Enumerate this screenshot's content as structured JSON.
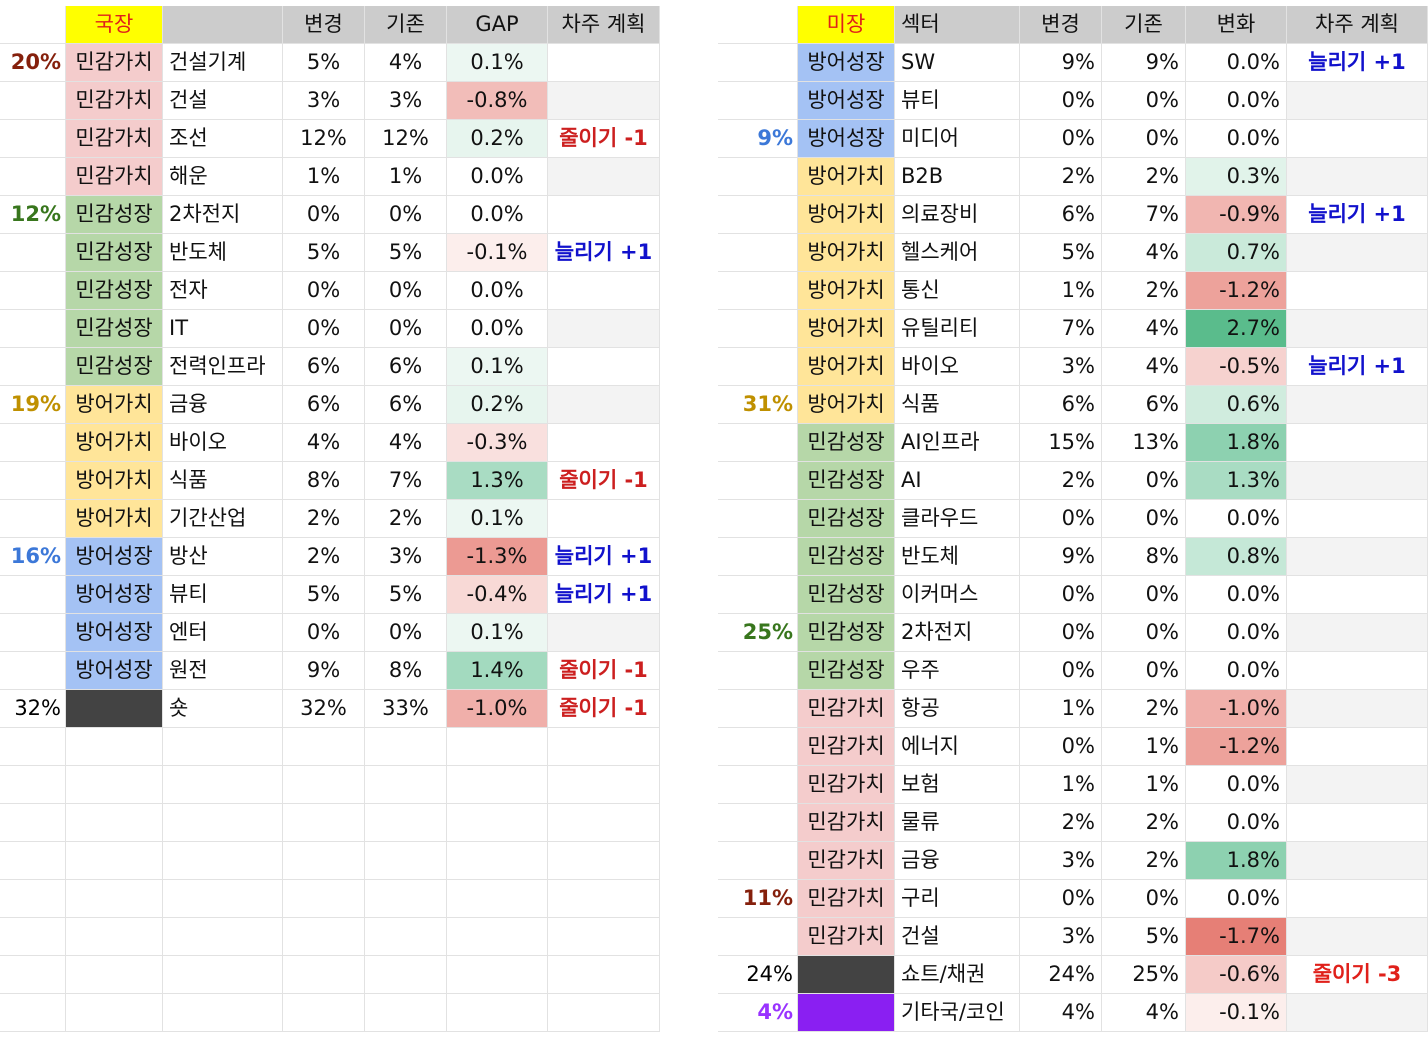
{
  "category_colors": {
    "민감가치": "#f4cccc",
    "민감성장": "#b6d7a8",
    "방어가치": "#ffe599",
    "방어성장": "#a4c2f4"
  },
  "tables": {
    "left": {
      "header": {
        "market": "국장",
        "columns": [
          "변경",
          "기존",
          "GAP",
          "차주 계획"
        ]
      },
      "rows": [
        {
          "pct": "20%",
          "pct_color": "#85200c",
          "category": "민감가치",
          "sector": "건설기계",
          "new": "5%",
          "old": "4%",
          "change": "0.1%"
        },
        {
          "category": "민감가치",
          "sector": "건설",
          "new": "3%",
          "old": "3%",
          "change": "-0.8%"
        },
        {
          "category": "민감가치",
          "sector": "조선",
          "new": "12%",
          "old": "12%",
          "change": "0.2%",
          "plan": "줄이기 -1",
          "plan_color": "#cc1f1f"
        },
        {
          "category": "민감가치",
          "sector": "해운",
          "new": "1%",
          "old": "1%",
          "change": "0.0%"
        },
        {
          "pct": "12%",
          "pct_color": "#38761d",
          "category": "민감성장",
          "sector": "2차전지",
          "new": "0%",
          "old": "0%",
          "change": "0.0%"
        },
        {
          "category": "민감성장",
          "sector": "반도체",
          "new": "5%",
          "old": "5%",
          "change": "-0.1%",
          "plan": "늘리기 +1",
          "plan_color": "#1111cc"
        },
        {
          "category": "민감성장",
          "sector": "전자",
          "new": "0%",
          "old": "0%",
          "change": "0.0%"
        },
        {
          "category": "민감성장",
          "sector": "IT",
          "new": "0%",
          "old": "0%",
          "change": "0.0%"
        },
        {
          "category": "민감성장",
          "sector": "전력인프라",
          "new": "6%",
          "old": "6%",
          "change": "0.1%"
        },
        {
          "pct": "19%",
          "pct_color": "#bf9000",
          "category": "방어가치",
          "sector": "금융",
          "new": "6%",
          "old": "6%",
          "change": "0.2%"
        },
        {
          "category": "방어가치",
          "sector": "바이오",
          "new": "4%",
          "old": "4%",
          "change": "-0.3%"
        },
        {
          "category": "방어가치",
          "sector": "식품",
          "new": "8%",
          "old": "7%",
          "change": "1.3%",
          "plan": "줄이기 -1",
          "plan_color": "#cc1f1f"
        },
        {
          "category": "방어가치",
          "sector": "기간산업",
          "new": "2%",
          "old": "2%",
          "change": "0.1%"
        },
        {
          "pct": "16%",
          "pct_color": "#3c78d8",
          "category": "방어성장",
          "sector": "방산",
          "new": "2%",
          "old": "3%",
          "change": "-1.3%",
          "plan": "늘리기 +1",
          "plan_color": "#1111cc"
        },
        {
          "category": "방어성장",
          "sector": "뷰티",
          "new": "5%",
          "old": "5%",
          "change": "-0.4%",
          "plan": "늘리기 +1",
          "plan_color": "#1111cc"
        },
        {
          "category": "방어성장",
          "sector": "엔터",
          "new": "0%",
          "old": "0%",
          "change": "0.1%"
        },
        {
          "category": "방어성장",
          "sector": "원전",
          "new": "9%",
          "old": "8%",
          "change": "1.4%",
          "plan": "줄이기 -1",
          "plan_color": "#cc1f1f"
        },
        {
          "pct": "32%",
          "pct_color": "#000000",
          "swatch": "#434343",
          "sector": "숏",
          "new": "32%",
          "old": "33%",
          "change": "-1.0%",
          "plan": "줄이기 -1",
          "plan_color": "#cc1f1f"
        }
      ]
    },
    "right": {
      "header": {
        "market": "미장",
        "sector": "섹터",
        "columns": [
          "변경",
          "기존",
          "변화",
          "차주 계획"
        ]
      },
      "rows": [
        {
          "category": "방어성장",
          "sector": "SW",
          "new": "9%",
          "old": "9%",
          "change": "0.0%",
          "plan": "늘리기 +1",
          "plan_color": "#1111cc"
        },
        {
          "category": "방어성장",
          "sector": "뷰티",
          "new": "0%",
          "old": "0%",
          "change": "0.0%"
        },
        {
          "pct": "9%",
          "pct_color": "#3c78d8",
          "category": "방어성장",
          "sector": "미디어",
          "new": "0%",
          "old": "0%",
          "change": "0.0%"
        },
        {
          "category": "방어가치",
          "sector": "B2B",
          "new": "2%",
          "old": "2%",
          "change": "0.3%"
        },
        {
          "category": "방어가치",
          "sector": "의료장비",
          "new": "6%",
          "old": "7%",
          "change": "-0.9%",
          "plan": "늘리기 +1",
          "plan_color": "#1111cc"
        },
        {
          "category": "방어가치",
          "sector": "헬스케어",
          "new": "5%",
          "old": "4%",
          "change": "0.7%"
        },
        {
          "category": "방어가치",
          "sector": "통신",
          "new": "1%",
          "old": "2%",
          "change": "-1.2%"
        },
        {
          "category": "방어가치",
          "sector": "유틸리티",
          "new": "7%",
          "old": "4%",
          "change": "2.7%"
        },
        {
          "category": "방어가치",
          "sector": "바이오",
          "new": "3%",
          "old": "4%",
          "change": "-0.5%",
          "plan": "늘리기 +1",
          "plan_color": "#1111cc"
        },
        {
          "pct": "31%",
          "pct_color": "#bf9000",
          "category": "방어가치",
          "sector": "식품",
          "new": "6%",
          "old": "6%",
          "change": "0.6%"
        },
        {
          "category": "민감성장",
          "sector": "AI인프라",
          "new": "15%",
          "old": "13%",
          "change": "1.8%"
        },
        {
          "category": "민감성장",
          "sector": "AI",
          "new": "2%",
          "old": "0%",
          "change": "1.3%"
        },
        {
          "category": "민감성장",
          "sector": "클라우드",
          "new": "0%",
          "old": "0%",
          "change": "0.0%"
        },
        {
          "category": "민감성장",
          "sector": "반도체",
          "new": "9%",
          "old": "8%",
          "change": "0.8%"
        },
        {
          "category": "민감성장",
          "sector": "이커머스",
          "new": "0%",
          "old": "0%",
          "change": "0.0%"
        },
        {
          "pct": "25%",
          "pct_color": "#38761d",
          "category": "민감성장",
          "sector": "2차전지",
          "new": "0%",
          "old": "0%",
          "change": "0.0%"
        },
        {
          "category": "민감성장",
          "sector": "우주",
          "new": "0%",
          "old": "0%",
          "change": "0.0%"
        },
        {
          "category": "민감가치",
          "sector": "항공",
          "new": "1%",
          "old": "2%",
          "change": "-1.0%"
        },
        {
          "category": "민감가치",
          "sector": "에너지",
          "new": "0%",
          "old": "1%",
          "change": "-1.2%"
        },
        {
          "category": "민감가치",
          "sector": "보험",
          "new": "1%",
          "old": "1%",
          "change": "0.0%"
        },
        {
          "category": "민감가치",
          "sector": "물류",
          "new": "2%",
          "old": "2%",
          "change": "0.0%"
        },
        {
          "category": "민감가치",
          "sector": "금융",
          "new": "3%",
          "old": "2%",
          "change": "1.8%"
        },
        {
          "pct": "11%",
          "pct_color": "#85200c",
          "category": "민감가치",
          "sector": "구리",
          "new": "0%",
          "old": "0%",
          "change": "0.0%"
        },
        {
          "category": "민감가치",
          "sector": "건설",
          "new": "3%",
          "old": "5%",
          "change": "-1.7%"
        },
        {
          "pct": "24%",
          "pct_color": "#000000",
          "swatch": "#434343",
          "sector": "쇼트/채권",
          "new": "24%",
          "old": "25%",
          "change": "-0.6%",
          "plan": "줄이기 -3",
          "plan_color": "#e0201a"
        },
        {
          "pct": "4%",
          "pct_color": "#9933ff",
          "swatch": "#8a1ff2",
          "sector": "기타국/코인",
          "new": "4%",
          "old": "4%",
          "change": "-0.1%"
        }
      ]
    }
  }
}
